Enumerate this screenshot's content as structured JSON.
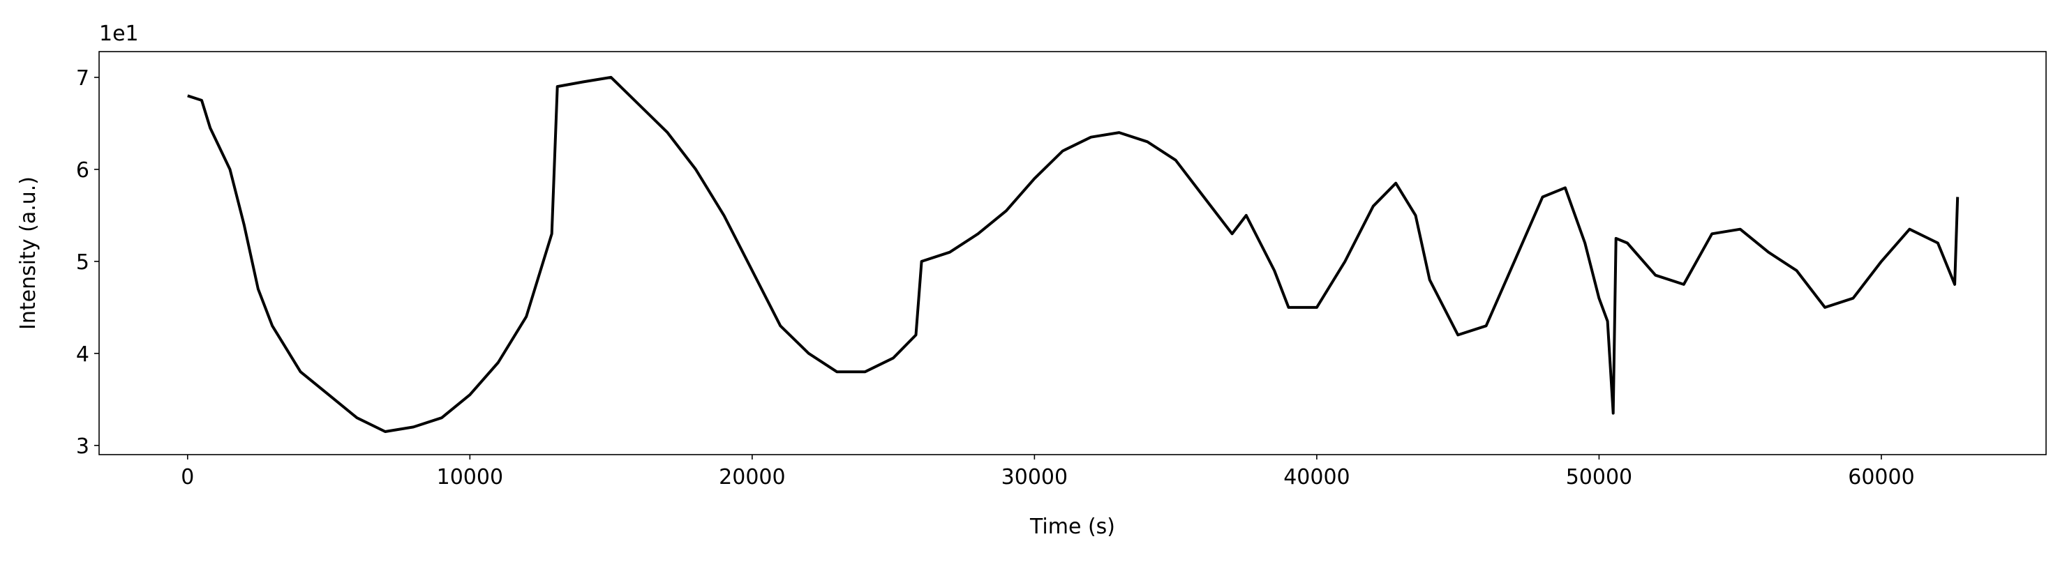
{
  "chart_data": {
    "type": "line",
    "x_label": "Time (s)",
    "y_label": "Intensity (a.u.)",
    "y_offset_label": "1e1",
    "xlim": [
      -3135,
      65835
    ],
    "ylim": [
      2.9,
      7.28
    ],
    "xticks": [
      0,
      10000,
      20000,
      30000,
      40000,
      50000,
      60000
    ],
    "yticks": [
      3,
      4,
      5,
      6,
      7
    ],
    "grid": false,
    "x": [
      0,
      500,
      800,
      1500,
      2000,
      2500,
      3000,
      3500,
      4000,
      5000,
      6000,
      7000,
      8000,
      9000,
      10000,
      11000,
      12000,
      12900,
      13100,
      14000,
      15000,
      16000,
      17000,
      18000,
      19000,
      20000,
      21000,
      22000,
      23000,
      24000,
      25000,
      25800,
      26000,
      27000,
      28000,
      29000,
      30000,
      31000,
      32000,
      33000,
      34000,
      35000,
      36000,
      37000,
      37500,
      38000,
      38500,
      39000,
      40000,
      41000,
      42000,
      42800,
      43500,
      44000,
      45000,
      46000,
      47000,
      48000,
      48800,
      49500,
      50000,
      50300,
      50500,
      50600,
      51000,
      52000,
      53000,
      54000,
      55000,
      56000,
      57000,
      58000,
      59000,
      60000,
      61000,
      62000,
      62600,
      62700
    ],
    "series": [
      {
        "name": "Intensity",
        "color": "#000000",
        "values": [
          6.8,
          6.75,
          6.45,
          6.0,
          5.4,
          4.7,
          4.3,
          4.05,
          3.8,
          3.55,
          3.3,
          3.15,
          3.2,
          3.3,
          3.55,
          3.9,
          4.4,
          5.3,
          6.9,
          6.95,
          7.0,
          6.7,
          6.4,
          6.0,
          5.5,
          4.9,
          4.3,
          4.0,
          3.8,
          3.8,
          3.95,
          4.2,
          5.0,
          5.1,
          5.3,
          5.55,
          5.9,
          6.2,
          6.35,
          6.4,
          6.3,
          6.1,
          5.7,
          5.3,
          5.5,
          5.2,
          4.9,
          4.5,
          4.5,
          5.0,
          5.6,
          5.85,
          5.5,
          4.8,
          4.2,
          4.3,
          5.0,
          5.7,
          5.8,
          5.2,
          4.6,
          4.35,
          3.35,
          5.25,
          5.2,
          4.85,
          4.75,
          5.3,
          5.35,
          5.1,
          4.9,
          4.5,
          4.6,
          5.0,
          5.35,
          5.2,
          4.75,
          5.7
        ]
      }
    ]
  }
}
